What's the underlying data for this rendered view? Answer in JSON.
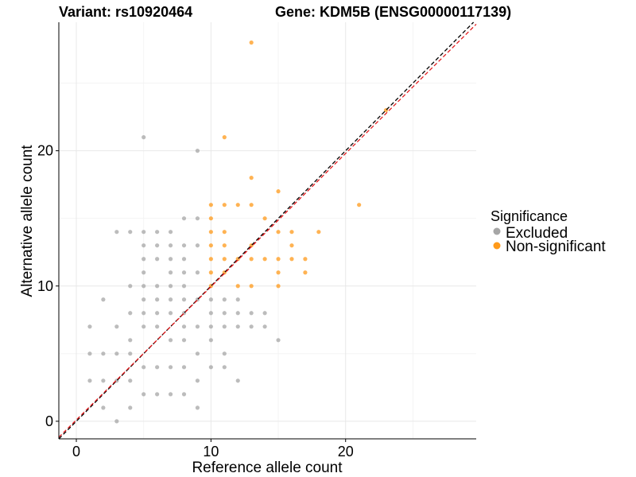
{
  "title_left": "Variant: rs10920464",
  "title_right": "Gene: KDM5B (ENSG00000117139)",
  "chart_data": {
    "type": "scatter",
    "xlabel": "Reference allele count",
    "ylabel": "Alternative allele count",
    "xlim": [
      -1.3,
      29.7
    ],
    "ylim": [
      -1.3,
      29.5
    ],
    "xticks": [
      0,
      10,
      20
    ],
    "yticks": [
      0,
      10,
      20
    ],
    "x_minor_grid": [
      5,
      15,
      25
    ],
    "y_minor_grid": [
      5,
      15,
      25
    ],
    "grid": true,
    "reference_lines": [
      {
        "name": "identity",
        "slope": 1,
        "intercept": 0,
        "color": "#000000",
        "style": "dashed"
      },
      {
        "name": "fit",
        "slope": 0.985,
        "intercept": 0.1,
        "color": "#e41a1c",
        "style": "dashed"
      }
    ],
    "legend": {
      "title": "Significance",
      "placement": "right",
      "entries": [
        {
          "label": "Excluded",
          "color": "#a6a6a6"
        },
        {
          "label": "Non-significant",
          "color": "#ff9a1a"
        }
      ]
    },
    "series": [
      {
        "name": "Excluded",
        "color": "#a6a6a6",
        "points": [
          [
            1,
            3
          ],
          [
            1,
            5
          ],
          [
            1,
            7
          ],
          [
            2,
            1
          ],
          [
            2,
            3
          ],
          [
            2,
            5
          ],
          [
            2,
            9
          ],
          [
            3,
            0
          ],
          [
            3,
            3
          ],
          [
            3,
            5
          ],
          [
            3,
            7
          ],
          [
            3,
            14
          ],
          [
            4,
            1
          ],
          [
            4,
            3
          ],
          [
            4,
            5
          ],
          [
            4,
            6
          ],
          [
            4,
            8
          ],
          [
            4,
            10
          ],
          [
            4,
            14
          ],
          [
            5,
            2
          ],
          [
            5,
            4
          ],
          [
            5,
            7
          ],
          [
            5,
            8
          ],
          [
            5,
            9
          ],
          [
            5,
            10
          ],
          [
            5,
            11
          ],
          [
            5,
            12
          ],
          [
            5,
            13
          ],
          [
            5,
            14
          ],
          [
            5,
            21
          ],
          [
            6,
            2
          ],
          [
            6,
            4
          ],
          [
            6,
            7
          ],
          [
            6,
            8
          ],
          [
            6,
            9
          ],
          [
            6,
            10
          ],
          [
            6,
            12
          ],
          [
            6,
            13
          ],
          [
            6,
            14
          ],
          [
            7,
            2
          ],
          [
            7,
            4
          ],
          [
            7,
            6
          ],
          [
            7,
            8
          ],
          [
            7,
            9
          ],
          [
            7,
            10
          ],
          [
            7,
            11
          ],
          [
            7,
            12
          ],
          [
            7,
            13
          ],
          [
            7,
            14
          ],
          [
            8,
            2
          ],
          [
            8,
            4
          ],
          [
            8,
            6
          ],
          [
            8,
            7
          ],
          [
            8,
            8
          ],
          [
            8,
            9
          ],
          [
            8,
            10
          ],
          [
            8,
            11
          ],
          [
            8,
            12
          ],
          [
            8,
            13
          ],
          [
            8,
            15
          ],
          [
            9,
            1
          ],
          [
            9,
            3
          ],
          [
            9,
            5
          ],
          [
            9,
            7
          ],
          [
            9,
            9
          ],
          [
            9,
            11
          ],
          [
            9,
            13
          ],
          [
            9,
            15
          ],
          [
            9,
            20
          ],
          [
            10,
            4
          ],
          [
            10,
            6
          ],
          [
            10,
            7
          ],
          [
            10,
            8
          ],
          [
            10,
            9
          ],
          [
            11,
            4
          ],
          [
            11,
            5
          ],
          [
            11,
            7
          ],
          [
            11,
            8
          ],
          [
            11,
            9
          ],
          [
            12,
            3
          ],
          [
            12,
            7
          ],
          [
            12,
            8
          ],
          [
            12,
            9
          ],
          [
            13,
            7
          ],
          [
            13,
            8
          ],
          [
            14,
            7
          ],
          [
            14,
            8
          ],
          [
            15,
            6
          ]
        ]
      },
      {
        "name": "Non-significant",
        "color": "#ff9a1a",
        "points": [
          [
            10,
            10
          ],
          [
            10,
            11
          ],
          [
            10,
            12
          ],
          [
            10,
            13
          ],
          [
            10,
            14
          ],
          [
            10,
            15
          ],
          [
            10,
            16
          ],
          [
            11,
            11
          ],
          [
            11,
            12
          ],
          [
            11,
            13
          ],
          [
            11,
            14
          ],
          [
            11,
            16
          ],
          [
            11,
            21
          ],
          [
            12,
            10
          ],
          [
            12,
            12
          ],
          [
            12,
            16
          ],
          [
            13,
            10
          ],
          [
            13,
            12
          ],
          [
            13,
            13
          ],
          [
            13,
            16
          ],
          [
            13,
            18
          ],
          [
            13,
            28
          ],
          [
            14,
            12
          ],
          [
            14,
            15
          ],
          [
            15,
            10
          ],
          [
            15,
            11
          ],
          [
            15,
            12
          ],
          [
            15,
            14
          ],
          [
            15,
            17
          ],
          [
            16,
            12
          ],
          [
            16,
            13
          ],
          [
            16,
            14
          ],
          [
            17,
            11
          ],
          [
            17,
            12
          ],
          [
            18,
            14
          ],
          [
            21,
            16
          ],
          [
            23,
            23
          ]
        ]
      }
    ]
  }
}
